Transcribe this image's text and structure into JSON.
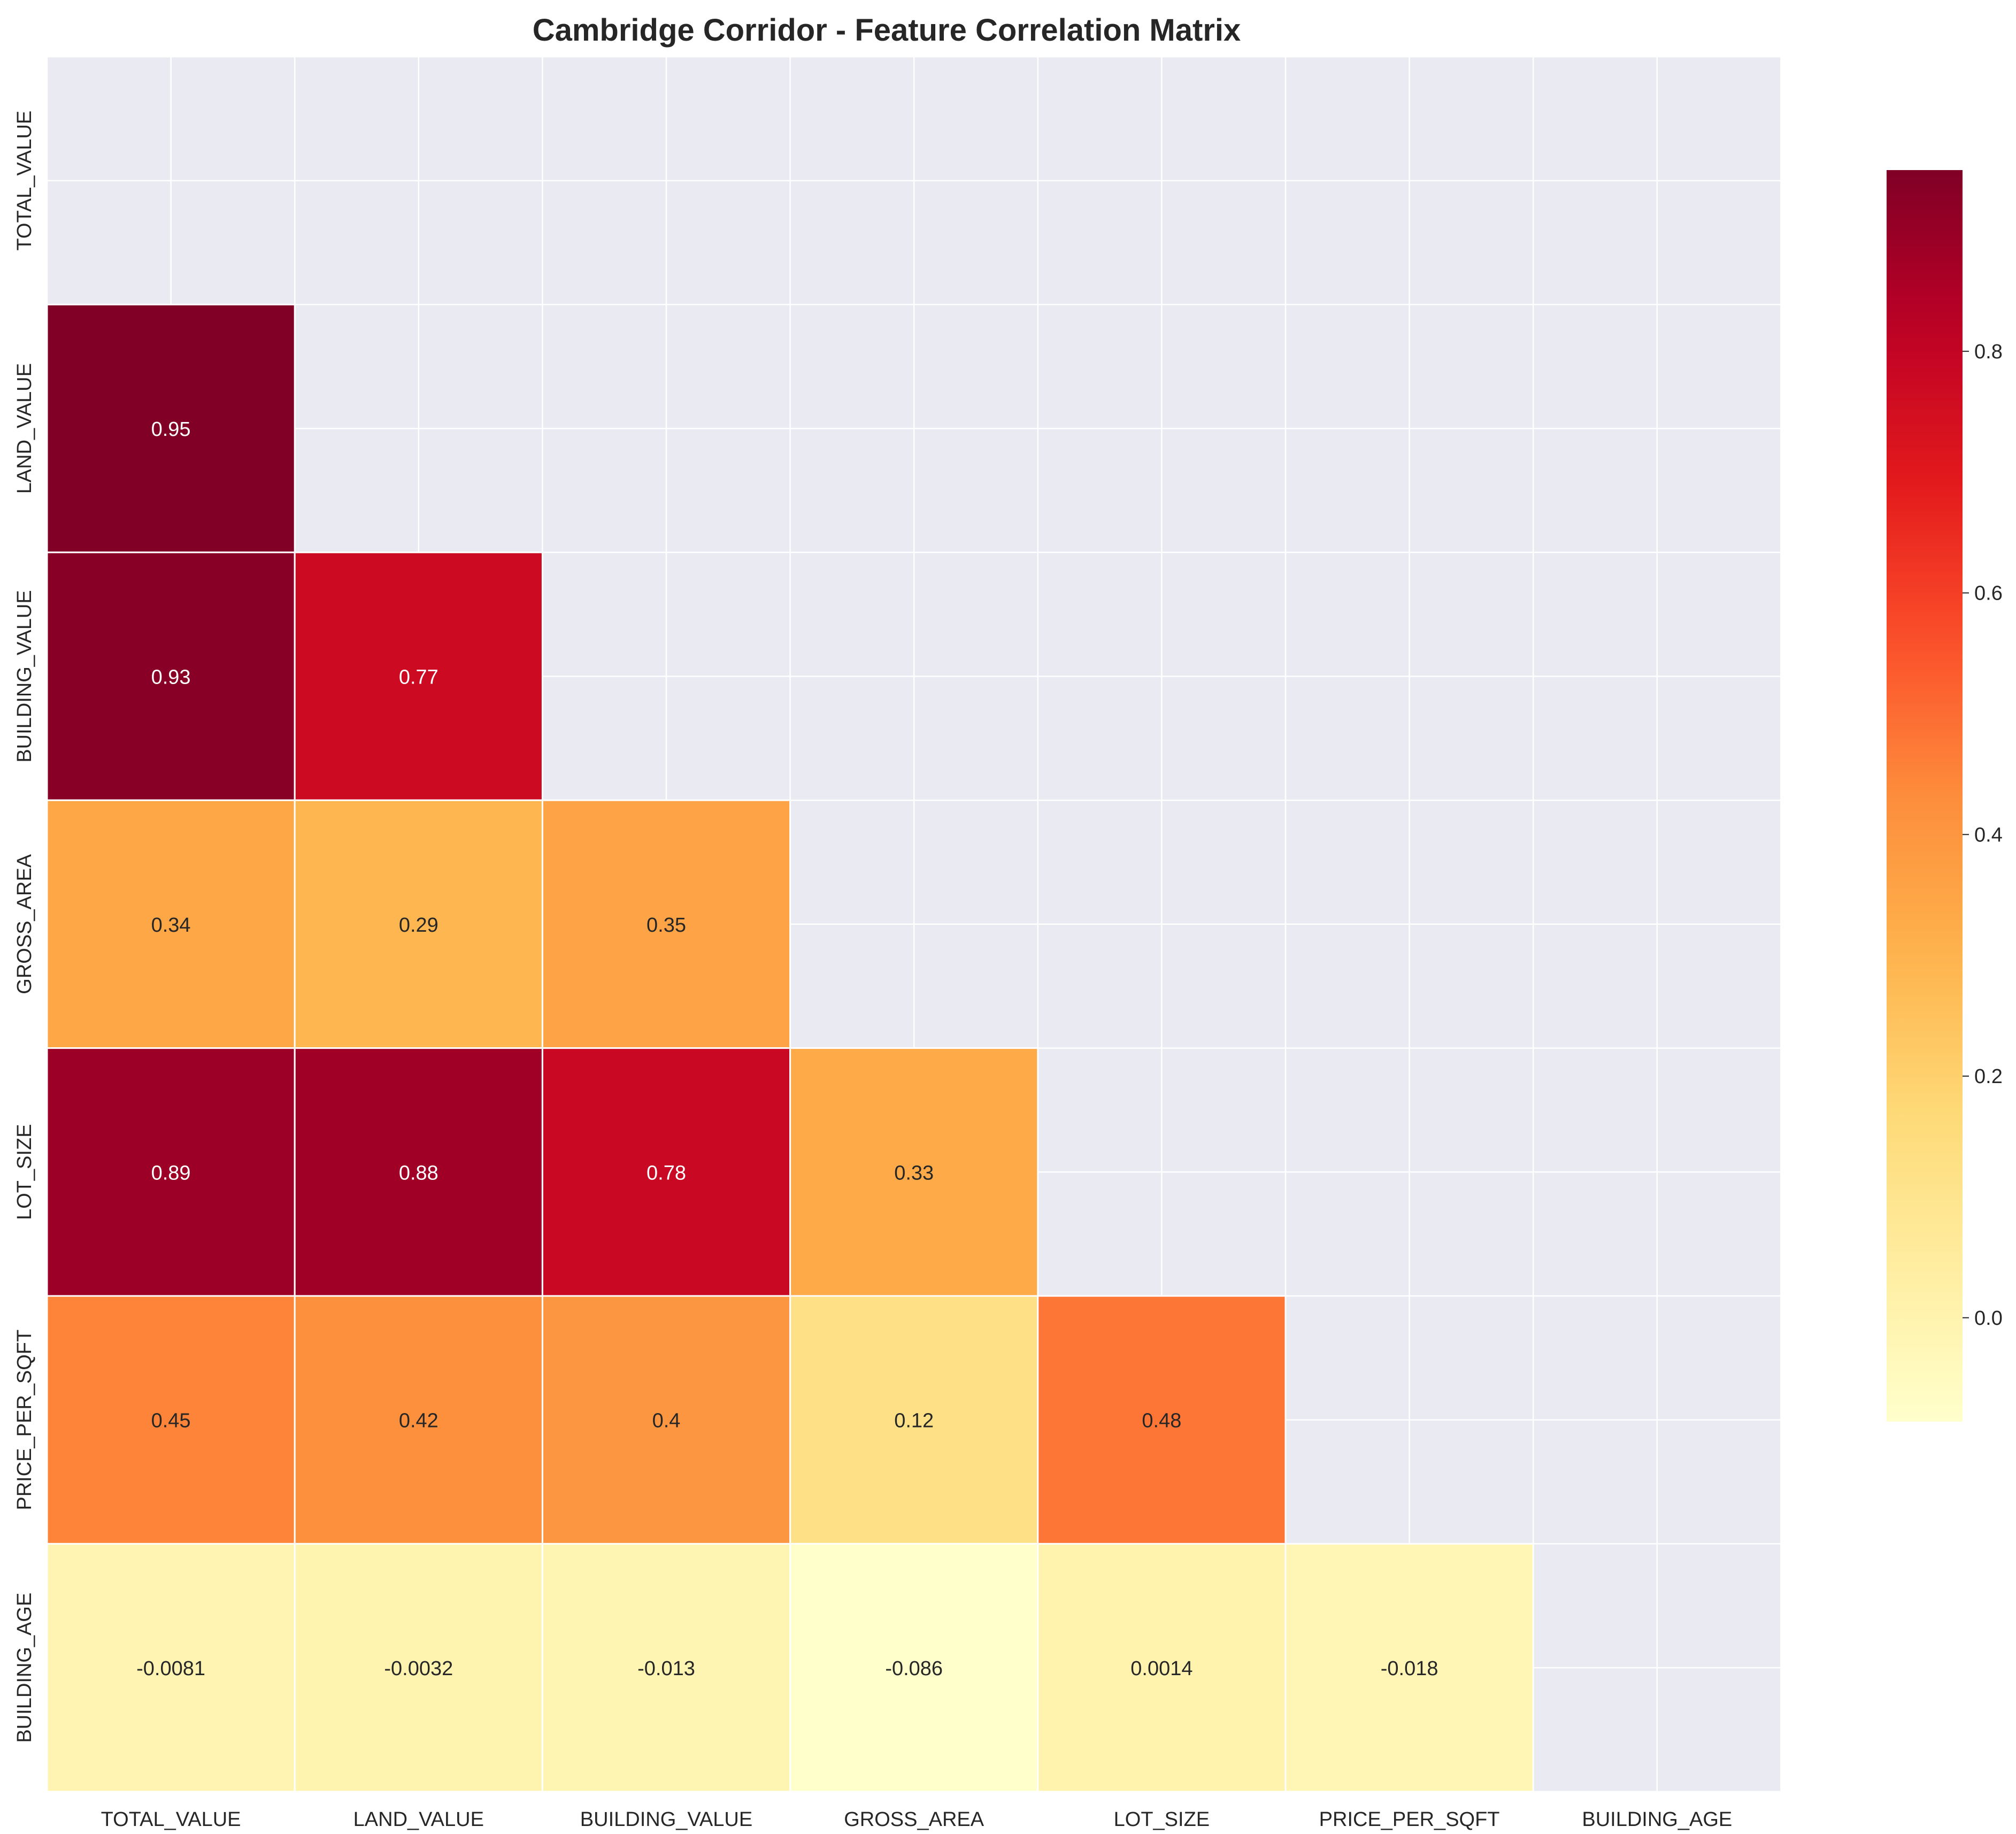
{
  "chart_data": {
    "type": "heatmap",
    "title": "Cambridge Corridor - Feature Correlation Matrix",
    "xlabel": "",
    "ylabel": "",
    "labels": [
      "TOTAL_VALUE",
      "LAND_VALUE",
      "BUILDING_VALUE",
      "GROSS_AREA",
      "LOT_SIZE",
      "PRICE_PER_SQFT",
      "BUILDING_AGE"
    ],
    "mask": "upper triangle including diagonal",
    "values": [
      [
        null,
        null,
        null,
        null,
        null,
        null,
        null
      ],
      [
        0.95,
        null,
        null,
        null,
        null,
        null,
        null
      ],
      [
        0.93,
        0.77,
        null,
        null,
        null,
        null,
        null
      ],
      [
        0.34,
        0.29,
        0.35,
        null,
        null,
        null,
        null
      ],
      [
        0.89,
        0.88,
        0.78,
        0.33,
        null,
        null,
        null
      ],
      [
        0.45,
        0.42,
        0.4,
        0.12,
        0.48,
        null,
        null
      ],
      [
        -0.0081,
        -0.0032,
        -0.013,
        -0.086,
        0.0014,
        -0.018,
        null
      ]
    ],
    "value_labels": [
      [
        null,
        null,
        null,
        null,
        null,
        null,
        null
      ],
      [
        "0.95",
        null,
        null,
        null,
        null,
        null,
        null
      ],
      [
        "0.93",
        "0.77",
        null,
        null,
        null,
        null,
        null
      ],
      [
        "0.34",
        "0.29",
        "0.35",
        null,
        null,
        null,
        null
      ],
      [
        "0.89",
        "0.88",
        "0.78",
        "0.33",
        null,
        null,
        null
      ],
      [
        "0.45",
        "0.42",
        "0.4",
        "0.12",
        "0.48",
        null,
        null
      ],
      [
        "-0.0081",
        "-0.0032",
        "-0.013",
        "-0.086",
        "0.0014",
        "-0.018",
        null
      ]
    ],
    "colormap": "YlOrRd",
    "vmin": -0.086,
    "vmax": 0.95,
    "colorbar_ticks": [
      0.0,
      0.2,
      0.4,
      0.6,
      0.8
    ],
    "colorbar_tick_labels": [
      "0.0",
      "0.2",
      "0.4",
      "0.6",
      "0.8"
    ],
    "grid": true,
    "colors": {
      "background": "#EAEAF2",
      "gridline": "#FFFFFF",
      "text_dark": "#262626",
      "text_light": "#FFFFFF"
    }
  }
}
